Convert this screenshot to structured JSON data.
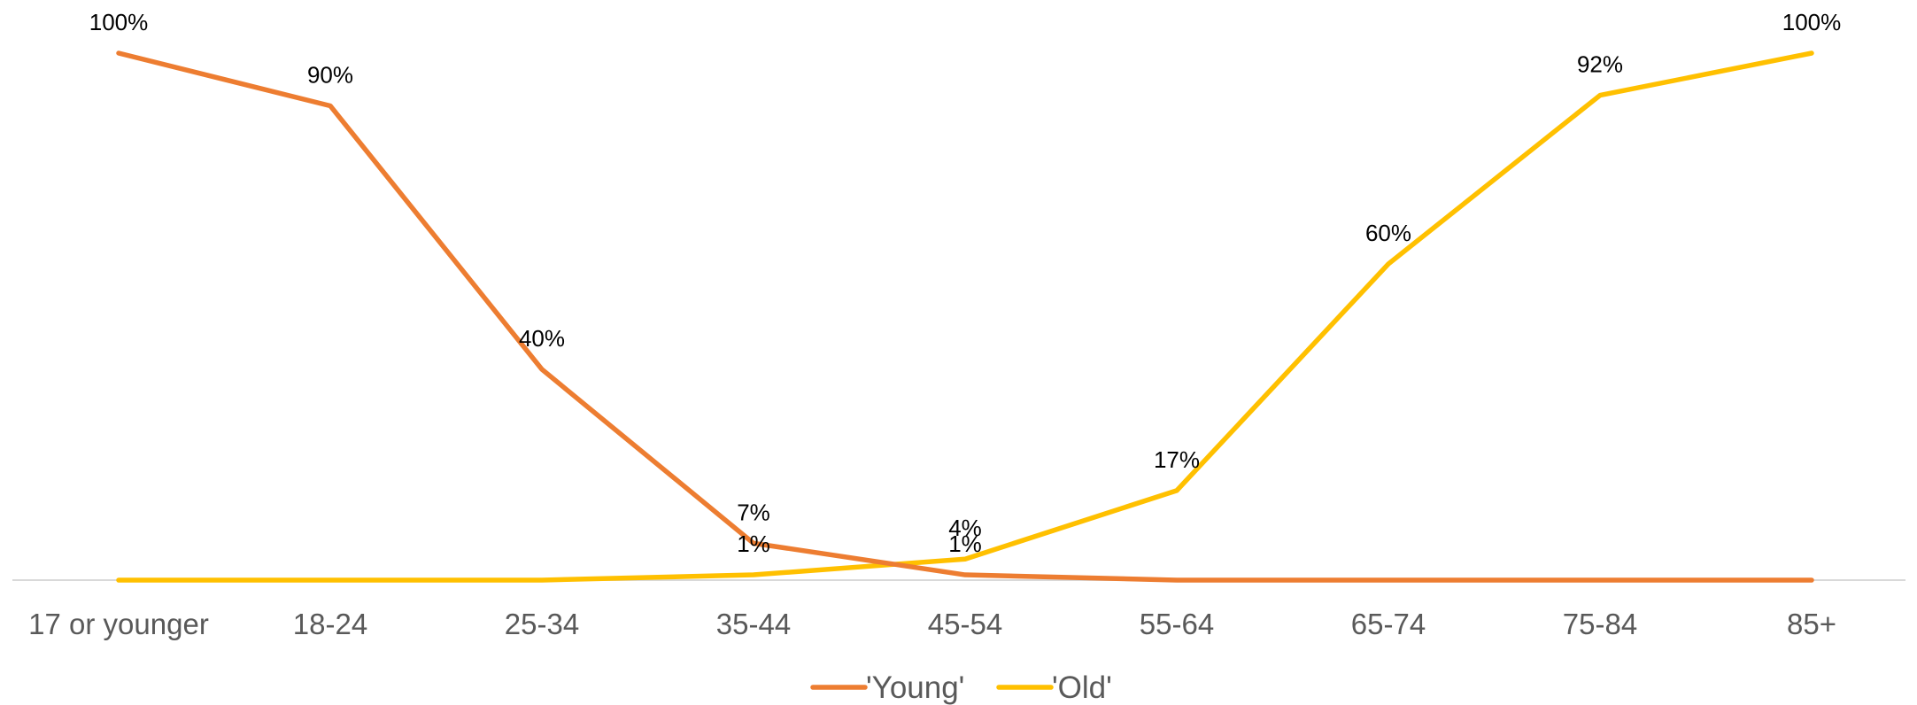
{
  "chart_data": {
    "type": "line",
    "title": "",
    "xlabel": "",
    "ylabel": "",
    "categories": [
      "17 or younger",
      "18-24",
      "25-34",
      "35-44",
      "45-54",
      "55-64",
      "65-74",
      "75-84",
      "85+"
    ],
    "ylim": [
      0,
      100
    ],
    "grid": false,
    "legend_position": "bottom",
    "series": [
      {
        "name": "'Young'",
        "color": "#ED7D31",
        "values": [
          100,
          90,
          40,
          7,
          1,
          0,
          0,
          0,
          0
        ],
        "data_labels": [
          "100%",
          "90%",
          "40%",
          "7%",
          "1%",
          "",
          "",
          "",
          ""
        ]
      },
      {
        "name": "'Old'",
        "color": "#FFC000",
        "values": [
          0,
          0,
          0,
          1,
          4,
          17,
          60,
          92,
          100
        ],
        "data_labels": [
          "",
          "",
          "",
          "1%",
          "4%",
          "17%",
          "60%",
          "92%",
          "100%"
        ]
      }
    ],
    "axis_color": "#D9D9D9"
  }
}
